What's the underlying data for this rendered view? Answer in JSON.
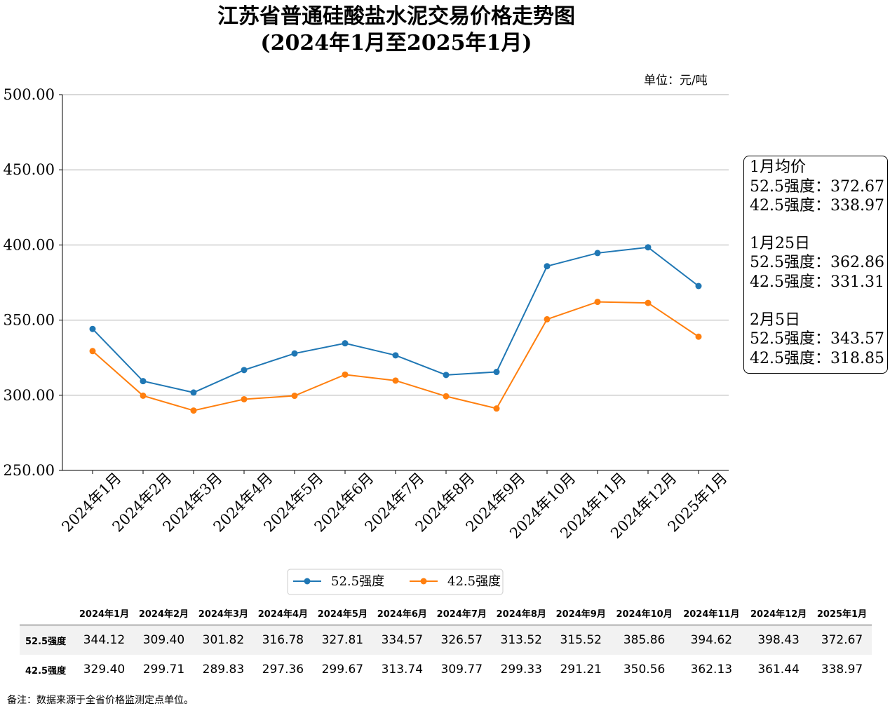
{
  "title_line1": "江苏省普通硅酸盐水泥交易价格走势图",
  "title_line2": "(2024年1月至2025年1月)",
  "unit": "单位：元/吨",
  "chart_data": {
    "type": "line",
    "categories": [
      "2024年1月",
      "2024年2月",
      "2024年3月",
      "2024年4月",
      "2024年5月",
      "2024年6月",
      "2024年7月",
      "2024年8月",
      "2024年9月",
      "2024年10月",
      "2024年11月",
      "2024年12月",
      "2025年1月"
    ],
    "series": [
      {
        "name": "52.5强度",
        "color": "#1f77b4",
        "values": [
          344.12,
          309.4,
          301.82,
          316.78,
          327.81,
          334.57,
          326.57,
          313.52,
          315.52,
          385.86,
          394.62,
          398.43,
          372.67
        ]
      },
      {
        "name": "42.5强度",
        "color": "#ff7f0e",
        "values": [
          329.4,
          299.71,
          289.83,
          297.36,
          299.67,
          313.74,
          309.77,
          299.33,
          291.21,
          350.56,
          362.13,
          361.44,
          338.97
        ]
      }
    ],
    "ylim": [
      250,
      500
    ],
    "yticks": [
      "500.00",
      "450.00",
      "400.00",
      "350.00",
      "300.00",
      "250.00"
    ],
    "grid": true,
    "legend_position": "bottom-center"
  },
  "summary": {
    "groups": [
      {
        "heading": "1月均价",
        "lines": [
          "52.5强度：372.67",
          "42.5强度：338.97"
        ]
      },
      {
        "heading": "1月25日",
        "lines": [
          "52.5强度：362.86",
          "42.5强度：331.31"
        ]
      },
      {
        "heading": "2月5日",
        "lines": [
          "52.5强度：343.57",
          "42.5强度：318.85"
        ]
      }
    ]
  },
  "table": {
    "columns": [
      "2024年1月",
      "2024年2月",
      "2024年3月",
      "2024年4月",
      "2024年5月",
      "2024年6月",
      "2024年7月",
      "2024年8月",
      "2024年9月",
      "2024年10月",
      "2024年11月",
      "2024年12月",
      "2025年1月"
    ],
    "rows": [
      {
        "label": "52.5强度",
        "values": [
          "344.12",
          "309.40",
          "301.82",
          "316.78",
          "327.81",
          "334.57",
          "326.57",
          "313.52",
          "315.52",
          "385.86",
          "394.62",
          "398.43",
          "372.67"
        ]
      },
      {
        "label": "42.5强度",
        "values": [
          "329.40",
          "299.71",
          "289.83",
          "297.36",
          "299.67",
          "313.74",
          "309.77",
          "299.33",
          "291.21",
          "350.56",
          "362.13",
          "361.44",
          "338.97"
        ]
      }
    ]
  },
  "note": "备注：数据来源于全省价格监测定点单位。"
}
